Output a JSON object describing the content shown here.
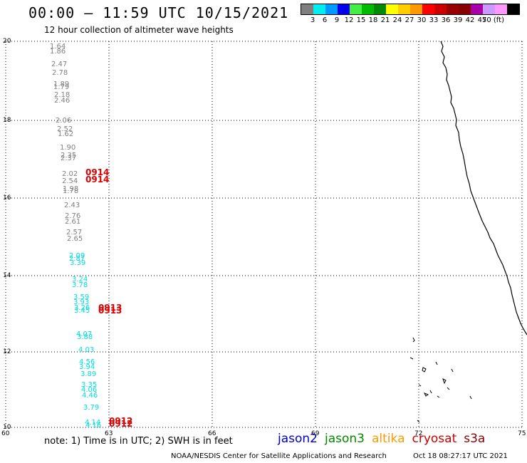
{
  "header": {
    "title": "00:00 – 11:59 UTC 10/15/2021",
    "subtitle": "12 hour collection of altimeter wave heights"
  },
  "legend": {
    "colors": [
      "#7f7f7f",
      "#00eeee",
      "#0099ff",
      "#0000ee",
      "#44ee44",
      "#00bb00",
      "#008800",
      "#ffff00",
      "#ffcc00",
      "#ff9900",
      "#ff0000",
      "#cc0000",
      "#990000",
      "#880000",
      "#aa00aa",
      "#cc99ff",
      "#ff99ff",
      "#000000"
    ],
    "labels": [
      "3",
      "6",
      "9",
      "12",
      "15",
      "18",
      "21",
      "24",
      "27",
      "30",
      "33",
      "36",
      "39",
      "42",
      "45",
      "70 (ft)"
    ]
  },
  "axes": {
    "lat_labels": [
      "20",
      "18",
      "16",
      "14",
      "12",
      "10"
    ],
    "lon_labels": [
      "60",
      "63",
      "66",
      "69",
      "72",
      "75"
    ]
  },
  "observations": {
    "gray": [
      "1.64",
      "1.86",
      "2.47",
      "2.78",
      "1.89",
      "1.79",
      "2.18",
      "2.46",
      "2.06",
      "2.52",
      "1.62",
      "1.90",
      "2.35",
      "2.37",
      "2.02",
      "2.54",
      "1.98",
      "1.78",
      "2.43",
      "2.76",
      "2.61",
      "2.57",
      "2.65"
    ],
    "cyan": [
      "2.09",
      "2.87",
      "3.39",
      "3.24",
      "3.78",
      "3.59",
      "3.93",
      "3.26",
      "3.45",
      "4.07",
      "3.88",
      "4.03",
      "4.56",
      "3.94",
      "3.89",
      "3.35",
      "4.06",
      "4.46",
      "3.79",
      "4.14",
      "4.16"
    ],
    "red": [
      "0914",
      "0914",
      "0913",
      "0913",
      "0912",
      "0912"
    ]
  },
  "footer": {
    "note": "note:  1) Time is in UTC;  2) SWH is in feet",
    "satellites": [
      {
        "name": "jason2",
        "color": "#0000cc"
      },
      {
        "name": "jason3",
        "color": "#008800"
      },
      {
        "name": "altika",
        "color": "#ff9900"
      },
      {
        "name": "cryosat",
        "color": "#cc0000"
      },
      {
        "name": "s3a",
        "color": "#880000"
      }
    ],
    "credit": "NOAA/NESDIS Center for Satellite Applications and Research",
    "timestamp": "Oct 18 08:27:17 UTC 2021"
  }
}
